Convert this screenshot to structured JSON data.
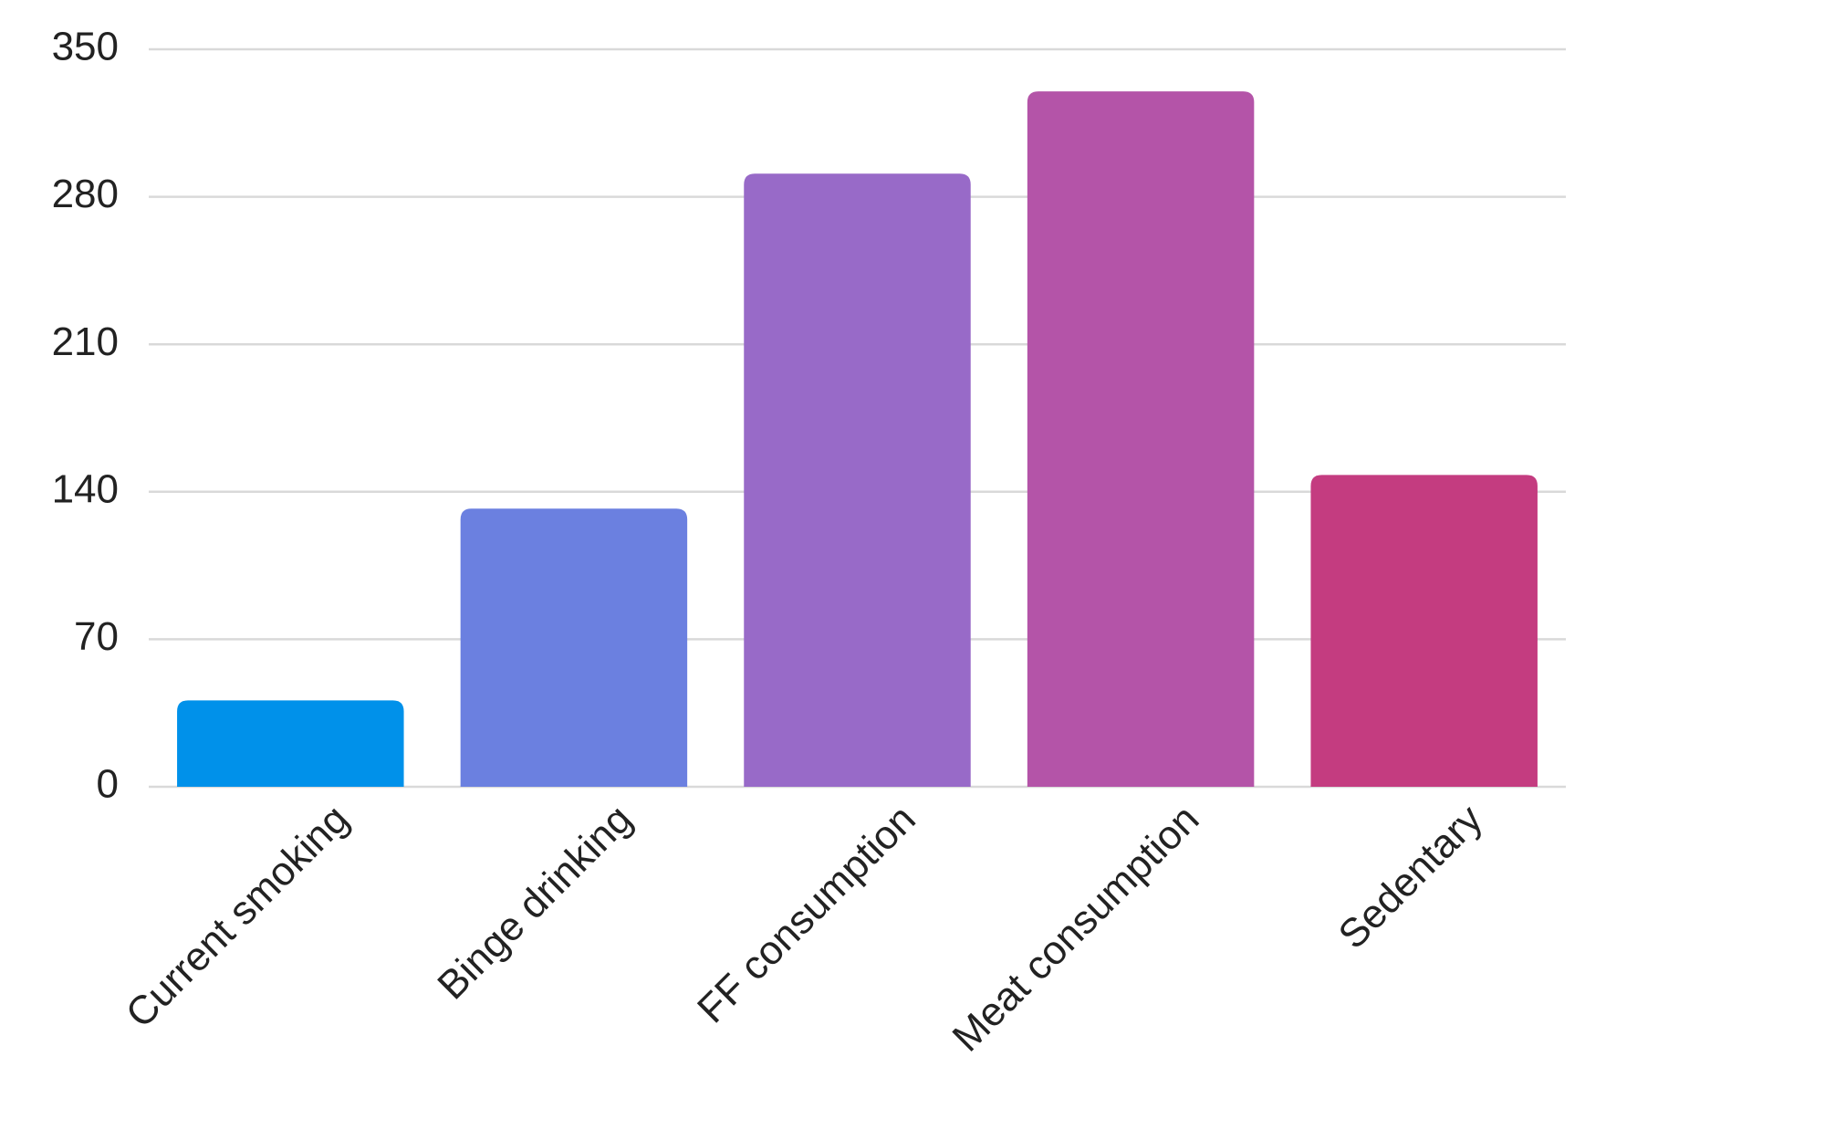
{
  "chart_data": {
    "type": "bar",
    "categories": [
      "Current smoking",
      "Binge drinking",
      "FF consumption",
      "Meat consumption",
      "Sedentary"
    ],
    "values": [
      41,
      132,
      291,
      330,
      148
    ],
    "colors": [
      "#0091ea",
      "#6b80e0",
      "#986ac8",
      "#b454a8",
      "#c43c80"
    ],
    "ylim": [
      0,
      350
    ],
    "yticks": [
      0,
      70,
      140,
      210,
      280,
      350
    ],
    "grid": true
  }
}
